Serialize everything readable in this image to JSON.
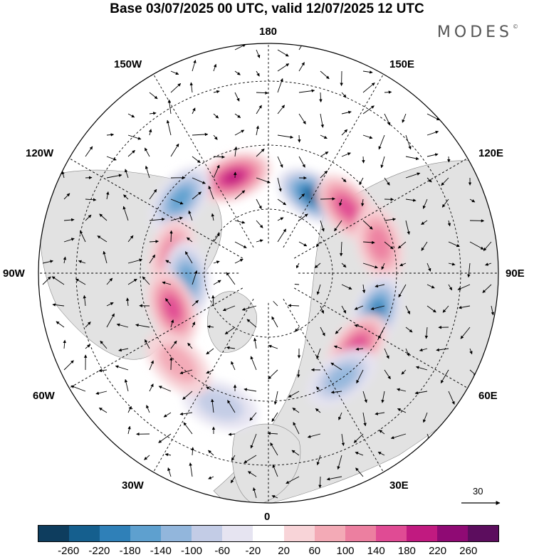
{
  "title": "Base 03/07/2025 00 UTC, valid 12/07/2025 12 UTC",
  "brand": "MODES",
  "brand_mark": "©",
  "longitude_labels": {
    "top": "180",
    "bottom": "0",
    "left": "90W",
    "right": "90E",
    "upper_left_1": "150W",
    "upper_left_2": "120W",
    "upper_right_1": "150E",
    "upper_right_2": "120E",
    "lower_left_1": "60W",
    "lower_left_2": "30W",
    "lower_right_1": "60E",
    "lower_right_2": "30E"
  },
  "reference_vector": "30",
  "colorbar": {
    "colors": [
      "#0e3d5e",
      "#155f8e",
      "#2f80b8",
      "#5ea0cf",
      "#92b6dc",
      "#c3cce6",
      "#e6e4f1",
      "#ffffff",
      "#f8d4d8",
      "#f3aab6",
      "#ec7fa0",
      "#e04b94",
      "#c11a80",
      "#8f0a74",
      "#5c0d5e"
    ],
    "tick_labels": [
      "-260",
      "-220",
      "-180",
      "-140",
      "-100",
      "-60",
      "-20",
      "20",
      "60",
      "100",
      "140",
      "180",
      "220",
      "260"
    ]
  },
  "anomaly_centers": [
    {
      "lon": 150,
      "lat": 55,
      "value": -220
    },
    {
      "lon": -160,
      "lat": 50,
      "value": 200
    },
    {
      "lon": -130,
      "lat": 45,
      "value": -160
    },
    {
      "lon": 130,
      "lat": 50,
      "value": 140
    },
    {
      "lon": 105,
      "lat": 45,
      "value": 100
    },
    {
      "lon": 70,
      "lat": 45,
      "value": -180
    },
    {
      "lon": 50,
      "lat": 45,
      "value": 160
    },
    {
      "lon": 35,
      "lat": 40,
      "value": -120
    },
    {
      "lon": -100,
      "lat": 52,
      "value": 130
    },
    {
      "lon": -85,
      "lat": 58,
      "value": -140
    },
    {
      "lon": -70,
      "lat": 50,
      "value": 160
    },
    {
      "lon": -20,
      "lat": 35,
      "value": -80
    },
    {
      "lon": -45,
      "lat": 40,
      "value": 60
    }
  ]
}
